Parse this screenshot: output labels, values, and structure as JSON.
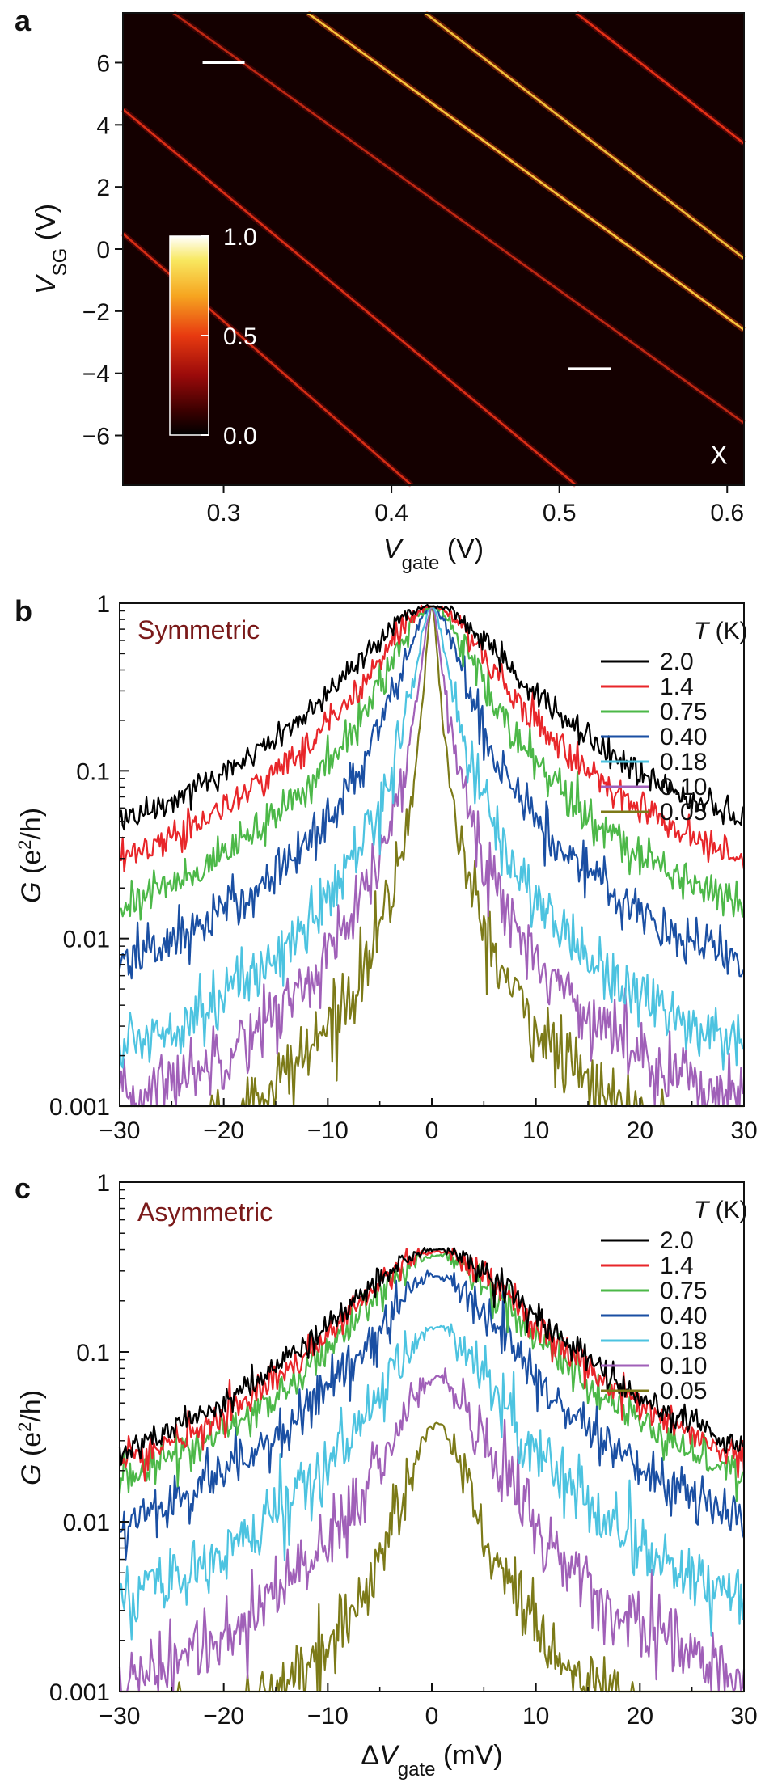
{
  "panels": [
    {
      "letter": "a",
      "type": "heatmap",
      "xlabel": {
        "main": "V",
        "sub": "gate",
        "unit": " (V)"
      },
      "ylabel": {
        "main": "V",
        "sub": "SG",
        "unit": " (V)"
      },
      "xlim": [
        0.24,
        0.61
      ],
      "ylim": [
        -7.6,
        7.6
      ],
      "xticks": [
        {
          "v": 0.3,
          "t": "0.3"
        },
        {
          "v": 0.4,
          "t": "0.4"
        },
        {
          "v": 0.5,
          "t": "0.5"
        },
        {
          "v": 0.6,
          "t": "0.6"
        }
      ],
      "yticks": [
        {
          "v": 6,
          "t": "6"
        },
        {
          "v": 4,
          "t": "4"
        },
        {
          "v": 2,
          "t": "2"
        },
        {
          "v": 0,
          "t": "0"
        },
        {
          "v": -2,
          "t": "−2"
        },
        {
          "v": -4,
          "t": "−4"
        },
        {
          "v": -6,
          "t": "−6"
        }
      ],
      "colorbar": {
        "min": 0.0,
        "max": 1.0,
        "ticks": [
          {
            "v": 1.0,
            "t": "1.0"
          },
          {
            "v": 0.5,
            "t": "0.5"
          },
          {
            "v": 0.0,
            "t": "0.0"
          }
        ]
      },
      "stripes": [
        {
          "x0": 0.24,
          "y0": 0.5,
          "x1": 0.412,
          "y1": -7.6,
          "intensity": 0.55
        },
        {
          "x0": 0.24,
          "y0": 4.5,
          "x1": 0.51,
          "y1": -7.6,
          "intensity": 0.6
        },
        {
          "x0": 0.27,
          "y0": 7.6,
          "x1": 0.61,
          "y1": -5.6,
          "intensity": 0.35
        },
        {
          "x0": 0.35,
          "y0": 7.6,
          "x1": 0.61,
          "y1": -2.6,
          "intensity": 0.9
        },
        {
          "x0": 0.42,
          "y0": 7.6,
          "x1": 0.61,
          "y1": -0.3,
          "intensity": 0.8
        },
        {
          "x0": 0.51,
          "y0": 7.6,
          "x1": 0.61,
          "y1": 3.4,
          "intensity": 0.7
        }
      ],
      "markers": [
        {
          "x": 0.3,
          "y": 6.0
        },
        {
          "x": 0.518,
          "y": -3.85
        }
      ],
      "annotation": {
        "text": "X",
        "x": 0.595,
        "y": -6.6
      }
    },
    {
      "letter": "b",
      "type": "line",
      "condition": "Symmetric",
      "xlabel": null,
      "ylabel": {
        "main": "G",
        "unit": " (e",
        "sup": "2",
        "tail": "/h)"
      },
      "xlim": [
        -30,
        30
      ],
      "ylim": [
        0.001,
        1
      ],
      "xticks": [
        {
          "v": -30,
          "t": "−30"
        },
        {
          "v": -20,
          "t": "−20"
        },
        {
          "v": -10,
          "t": "−10"
        },
        {
          "v": 0,
          "t": "0"
        },
        {
          "v": 10,
          "t": "10"
        },
        {
          "v": 20,
          "t": "20"
        },
        {
          "v": 30,
          "t": "30"
        }
      ],
      "yticks": [
        {
          "v": 1,
          "t": "1"
        },
        {
          "v": 0.1,
          "t": "0.1"
        },
        {
          "v": 0.01,
          "t": "0.01"
        },
        {
          "v": 0.001,
          "t": "0.001"
        }
      ],
      "legend_title": "T (K)",
      "series": [
        {
          "name": "2.0",
          "color": "#000000",
          "peak": 0.95,
          "center": 0.0,
          "width": 6.5,
          "floor": 0.008,
          "noise": 0.1
        },
        {
          "name": "1.4",
          "color": "#e8262a",
          "peak": 0.95,
          "center": 0.0,
          "width": 5.0,
          "floor": 0.004,
          "noise": 0.12
        },
        {
          "name": "0.75",
          "color": "#4cb848",
          "peak": 0.95,
          "center": 0.0,
          "width": 3.6,
          "floor": 0.0022,
          "noise": 0.14
        },
        {
          "name": "0.40",
          "color": "#1a4fa3",
          "peak": 0.95,
          "center": 0.0,
          "width": 2.4,
          "floor": 0.0012,
          "noise": 0.18
        },
        {
          "name": "0.18",
          "color": "#4cc3e0",
          "peak": 0.95,
          "center": 0.0,
          "width": 1.35,
          "floor": 0.0003,
          "noise": 0.22
        },
        {
          "name": "0.10",
          "color": "#a060b8",
          "peak": 0.95,
          "center": 0.0,
          "width": 0.9,
          "floor": 0.0002,
          "noise": 0.24
        },
        {
          "name": "0.05",
          "color": "#7c7a18",
          "peak": 0.95,
          "center": 0.0,
          "width": 0.55,
          "floor": 0.0001,
          "noise": 0.26
        }
      ]
    },
    {
      "letter": "c",
      "type": "line",
      "condition": "Asymmetric",
      "xlabel": {
        "pre": "Δ",
        "main": "V",
        "sub": "gate",
        "unit": " (mV)"
      },
      "ylabel": {
        "main": "G",
        "unit": " (e",
        "sup": "2",
        "tail": "/h)"
      },
      "xlim": [
        -30,
        30
      ],
      "ylim": [
        0.001,
        1
      ],
      "xticks": [
        {
          "v": -30,
          "t": "−30"
        },
        {
          "v": -20,
          "t": "−20"
        },
        {
          "v": -10,
          "t": "−10"
        },
        {
          "v": 0,
          "t": "0"
        },
        {
          "v": 10,
          "t": "10"
        },
        {
          "v": 20,
          "t": "20"
        },
        {
          "v": 30,
          "t": "30"
        }
      ],
      "yticks": [
        {
          "v": 1,
          "t": "1"
        },
        {
          "v": 0.1,
          "t": "0.1"
        },
        {
          "v": 0.01,
          "t": "0.01"
        },
        {
          "v": 0.001,
          "t": "0.001"
        }
      ],
      "legend_title": "T (K)",
      "series": [
        {
          "name": "2.0",
          "color": "#000000",
          "peak": 0.4,
          "center": 0.5,
          "width": 7.8,
          "floor": 0.0008,
          "noise": 0.1
        },
        {
          "name": "1.4",
          "color": "#e8262a",
          "peak": 0.39,
          "center": 0.5,
          "width": 7.3,
          "floor": 0.0005,
          "noise": 0.12
        },
        {
          "name": "0.75",
          "color": "#4cb848",
          "peak": 0.37,
          "center": 0.5,
          "width": 6.6,
          "floor": 0.0003,
          "noise": 0.14
        },
        {
          "name": "0.40",
          "color": "#1a4fa3",
          "peak": 0.28,
          "center": 0.5,
          "width": 5.6,
          "floor": 0.0002,
          "noise": 0.18
        },
        {
          "name": "0.18",
          "color": "#4cc3e0",
          "peak": 0.14,
          "center": 0.5,
          "width": 4.6,
          "floor": 0.0001,
          "noise": 0.22
        },
        {
          "name": "0.10",
          "color": "#a060b8",
          "peak": 0.072,
          "center": 0.5,
          "width": 3.6,
          "floor": 0.0001,
          "noise": 0.24
        },
        {
          "name": "0.05",
          "color": "#7c7a18",
          "peak": 0.038,
          "center": 0.5,
          "width": 2.4,
          "floor": 0.0001,
          "noise": 0.26
        }
      ]
    }
  ]
}
